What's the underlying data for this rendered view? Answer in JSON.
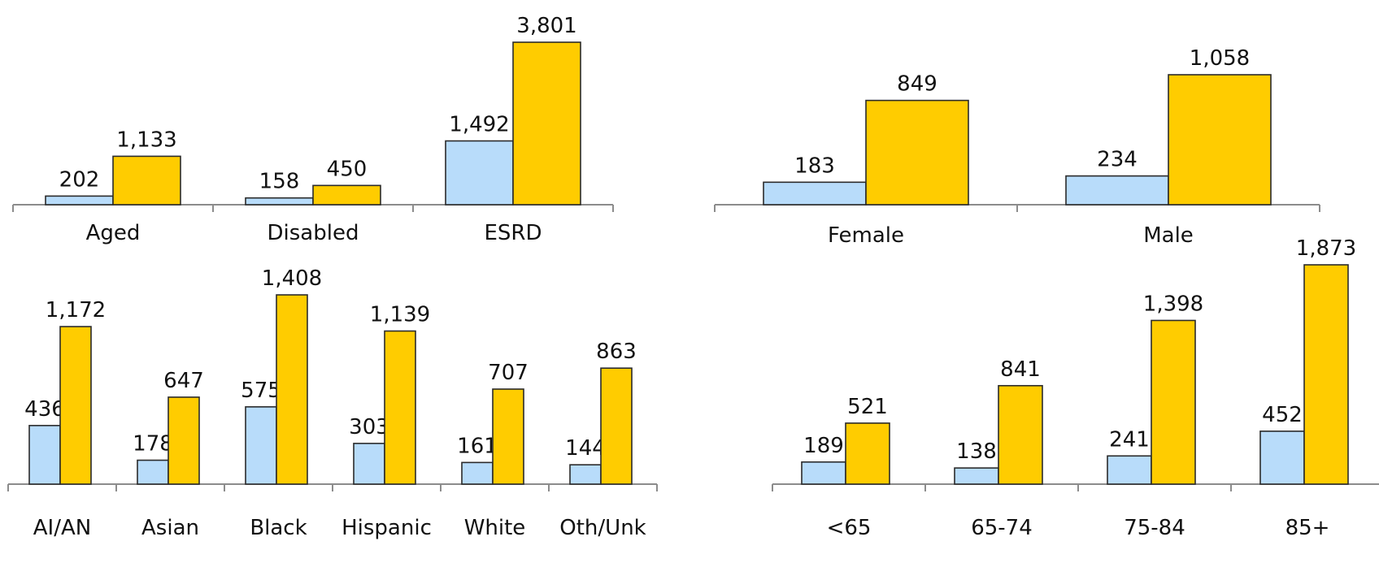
{
  "colors": {
    "series_a": "#b8dcfa",
    "series_b": "#ffcc00",
    "axis": "#8c8c8c",
    "bar_outline": "#2b2b2b"
  },
  "chart_data": [
    {
      "id": "entitlement",
      "type": "bar",
      "title": "",
      "categories": [
        "Aged",
        "Disabled",
        "ESRD"
      ],
      "series": [
        {
          "values": [
            202,
            158,
            1492
          ]
        },
        {
          "values": [
            1133,
            450,
            3801
          ]
        }
      ],
      "labels": [
        [
          "202",
          "158",
          "1,492"
        ],
        [
          "1,133",
          "450",
          "3,801"
        ]
      ],
      "ylim": [
        0,
        3801
      ],
      "grid": false,
      "legend": "none"
    },
    {
      "id": "sex",
      "type": "bar",
      "title": "",
      "categories": [
        "Female",
        "Male"
      ],
      "series": [
        {
          "values": [
            183,
            234
          ]
        },
        {
          "values": [
            849,
            1058
          ]
        }
      ],
      "labels": [
        [
          "183",
          "234"
        ],
        [
          "849",
          "1,058"
        ]
      ],
      "ylim": [
        0,
        1058
      ],
      "grid": false,
      "legend": "none"
    },
    {
      "id": "race",
      "type": "bar",
      "title": "",
      "categories": [
        "AI/AN",
        "Asian",
        "Black",
        "Hispanic",
        "White",
        "Oth/Unk"
      ],
      "series": [
        {
          "values": [
            436,
            178,
            575,
            303,
            161,
            144
          ]
        },
        {
          "values": [
            1172,
            647,
            1408,
            1139,
            707,
            863
          ]
        }
      ],
      "labels": [
        [
          "436",
          "178",
          "575",
          "303",
          "161",
          "144"
        ],
        [
          "1,172",
          "647",
          "1,408",
          "1,139",
          "707",
          "863"
        ]
      ],
      "ylim": [
        0,
        1408
      ],
      "grid": false,
      "legend": "none"
    },
    {
      "id": "age",
      "type": "bar",
      "title": "",
      "categories": [
        "<65",
        "65-74",
        "75-84",
        "85+"
      ],
      "series": [
        {
          "values": [
            189,
            138,
            241,
            452
          ]
        },
        {
          "values": [
            521,
            841,
            1398,
            1873
          ]
        }
      ],
      "labels": [
        [
          "189",
          "138",
          "241",
          "452"
        ],
        [
          "521",
          "841",
          "1,398",
          "1,873"
        ]
      ],
      "ylim": [
        0,
        1873
      ],
      "grid": false,
      "legend": "none"
    }
  ]
}
